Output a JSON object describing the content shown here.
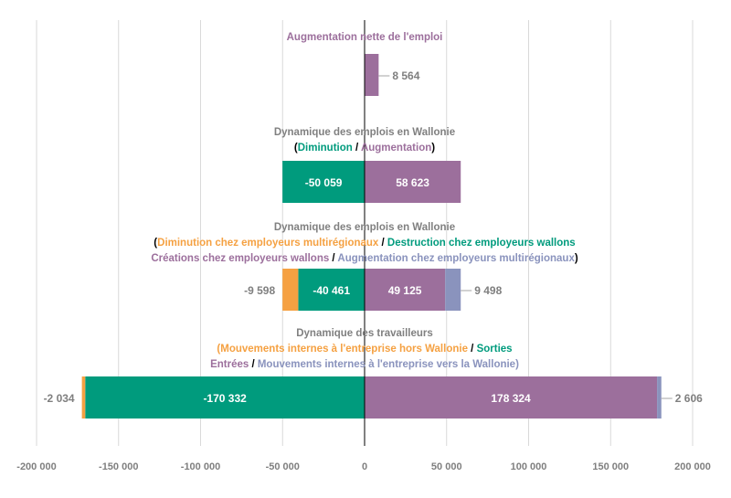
{
  "colors": {
    "purple": "#9c6f9c",
    "teal": "#009b7d",
    "orange": "#f5a142",
    "slate": "#8a93bd",
    "grid": "#d9d9d9",
    "axis": "#000000",
    "label_gray": "#7f7f7f",
    "title_gray": "#808080"
  },
  "chart_data": {
    "type": "bar",
    "orientation": "horizontal",
    "stacked": true,
    "xlim": [
      -200000,
      200000
    ],
    "x_ticks": [
      -200000,
      -150000,
      -100000,
      -50000,
      0,
      50000,
      100000,
      150000,
      200000
    ],
    "x_tick_labels": [
      "-200 000",
      "-150 000",
      "-100 000",
      "-50 000",
      "0",
      "50 000",
      "100 000",
      "150 000",
      "200 000"
    ],
    "grid": true,
    "groups": [
      {
        "title_lines": [
          [
            {
              "text": "Augmentation nette de l'emploi",
              "color": "purple"
            }
          ]
        ],
        "segments": [
          {
            "value": 8564,
            "label": "8 564",
            "color": "purple",
            "label_pos": "outside-right"
          }
        ]
      },
      {
        "title_lines": [
          [
            {
              "text": "Dynamique des emplois en Wallonie",
              "color": "title_gray"
            }
          ],
          [
            {
              "text": "(",
              "color": "axis"
            },
            {
              "text": "Diminution",
              "color": "teal"
            },
            {
              "text": " / ",
              "color": "axis"
            },
            {
              "text": "Augmentation",
              "color": "purple"
            },
            {
              "text": ")",
              "color": "axis"
            }
          ]
        ],
        "segments": [
          {
            "value": -50059,
            "label": "-50 059",
            "color": "teal",
            "label_pos": "inside"
          },
          {
            "value": 58623,
            "label": "58 623",
            "color": "purple",
            "label_pos": "inside"
          }
        ]
      },
      {
        "title_lines": [
          [
            {
              "text": "Dynamique des emplois en Wallonie",
              "color": "title_gray"
            }
          ],
          [
            {
              "text": "(",
              "color": "axis"
            },
            {
              "text": "Diminution chez employeurs multirégionaux",
              "color": "orange"
            },
            {
              "text": " / ",
              "color": "axis"
            },
            {
              "text": "Destruction chez employeurs wallons",
              "color": "teal"
            }
          ],
          [
            {
              "text": "Créations chez employeurs wallons",
              "color": "purple"
            },
            {
              "text": " / ",
              "color": "axis"
            },
            {
              "text": "Augmentation chez employeurs multirégionaux",
              "color": "slate"
            },
            {
              "text": ")",
              "color": "axis"
            }
          ]
        ],
        "segments": [
          {
            "value": -40461,
            "label": "-40 461",
            "color": "teal",
            "label_pos": "inside"
          },
          {
            "value": -9598,
            "label": "-9 598",
            "color": "orange",
            "label_pos": "outside-left"
          },
          {
            "value": 49125,
            "label": "49 125",
            "color": "purple",
            "label_pos": "inside"
          },
          {
            "value": 9498,
            "label": "9 498",
            "color": "slate",
            "label_pos": "outside-right"
          }
        ]
      },
      {
        "title_lines": [
          [
            {
              "text": "Dynamique des travailleurs",
              "color": "title_gray"
            }
          ],
          [
            {
              "text": "(Mouvements internes à l'entreprise hors Wallonie",
              "color": "orange"
            },
            {
              "text": " / ",
              "color": "axis"
            },
            {
              "text": "Sorties",
              "color": "teal"
            }
          ],
          [
            {
              "text": "Entrées",
              "color": "purple"
            },
            {
              "text": " / ",
              "color": "axis"
            },
            {
              "text": "Mouvements internes à l'entreprise vers la Wallonie)",
              "color": "slate"
            }
          ]
        ],
        "segments": [
          {
            "value": -170332,
            "label": "-170 332",
            "color": "teal",
            "label_pos": "inside"
          },
          {
            "value": -2034,
            "label": "-2 034",
            "color": "orange",
            "label_pos": "outside-left"
          },
          {
            "value": 178324,
            "label": "178 324",
            "color": "purple",
            "label_pos": "inside"
          },
          {
            "value": 2606,
            "label": "2 606",
            "color": "slate",
            "label_pos": "outside-right"
          }
        ]
      }
    ]
  }
}
